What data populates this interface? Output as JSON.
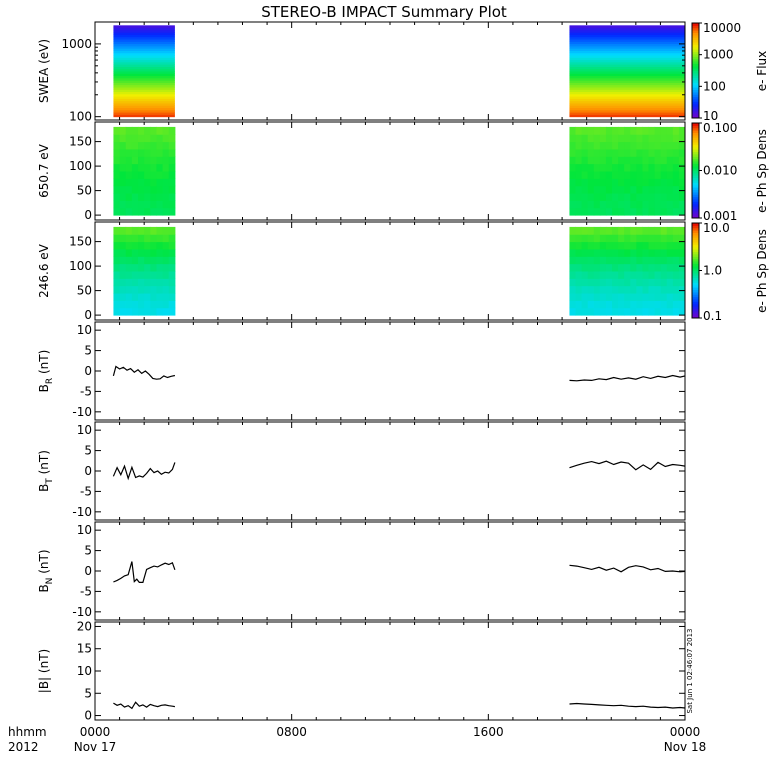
{
  "title": "STEREO-B IMPACT Summary Plot",
  "x_axis": {
    "row1_label": "hhmm",
    "row2_label": "2012",
    "ticks": [
      {
        "t": 0,
        "label": "0000",
        "date": "Nov 17"
      },
      {
        "t": 8,
        "label": "0800",
        "date": ""
      },
      {
        "t": 16,
        "label": "1600",
        "date": ""
      },
      {
        "t": 24,
        "label": "0000",
        "date": "Nov 18"
      }
    ],
    "range_hours": [
      0,
      24
    ]
  },
  "stamp": "Sat Jun 1 02:46:07 2013",
  "chart_data": [
    {
      "type": "heatmap",
      "panel": "swea",
      "ylabel": "SWEA (eV)",
      "yscale": "log",
      "ylim": [
        90,
        2000
      ],
      "yticks": [
        {
          "v": 100,
          "label": "100"
        },
        {
          "v": 1000,
          "label": "1000"
        }
      ],
      "colorbar": {
        "label": "e- Flux",
        "scale": "log",
        "range": [
          10,
          10000
        ],
        "ticks": [
          {
            "v": 10,
            "label": "10"
          },
          {
            "v": 100,
            "label": "100"
          },
          {
            "v": 1000,
            "label": "1000"
          },
          {
            "v": 10000,
            "label": "10000"
          }
        ]
      },
      "segments": [
        {
          "x0": 0.75,
          "x1": 3.25
        },
        {
          "x0": 19.3,
          "x1": 24
        }
      ],
      "energy_range": [
        100,
        1800
      ],
      "flux_low_energy": 8000,
      "flux_high_energy": 15
    },
    {
      "type": "heatmap",
      "panel": "pad650",
      "ylabel": "650.7 eV",
      "ylim": [
        -10,
        190
      ],
      "yticks": [
        {
          "v": 0,
          "label": "0"
        },
        {
          "v": 50,
          "label": "50"
        },
        {
          "v": 100,
          "label": "100"
        },
        {
          "v": 150,
          "label": "150"
        }
      ],
      "colorbar": {
        "label": "e- Ph Sp Dens",
        "scale": "log",
        "range": [
          0.001,
          0.1
        ],
        "ticks": [
          {
            "v": 0.001,
            "label": "0.001"
          },
          {
            "v": 0.01,
            "label": "0.010"
          },
          {
            "v": 0.1,
            "label": "0.100"
          }
        ]
      },
      "segments": [
        {
          "x0": 0.75,
          "x1": 3.25
        },
        {
          "x0": 19.3,
          "x1": 24
        }
      ],
      "pitch_range": [
        0,
        180
      ],
      "value_range": [
        0.011,
        0.018
      ]
    },
    {
      "type": "heatmap",
      "panel": "pad246",
      "ylabel": "246.6 eV",
      "ylim": [
        -10,
        190
      ],
      "yticks": [
        {
          "v": 0,
          "label": "0"
        },
        {
          "v": 50,
          "label": "50"
        },
        {
          "v": 100,
          "label": "100"
        },
        {
          "v": 150,
          "label": "150"
        }
      ],
      "colorbar": {
        "label": "e- Ph Sp Dens",
        "scale": "log",
        "range": [
          0.1,
          10
        ],
        "ticks": [
          {
            "v": 0.1,
            "label": "0.1"
          },
          {
            "v": 1,
            "label": "1.0"
          },
          {
            "v": 10,
            "label": "10.0"
          }
        ]
      },
      "segments": [
        {
          "x0": 0.75,
          "x1": 3.25
        },
        {
          "x0": 19.3,
          "x1": 24
        }
      ],
      "pitch_range": [
        0,
        180
      ],
      "value_range": [
        0.55,
        1.9
      ]
    },
    {
      "type": "line",
      "panel": "br",
      "ylabel": "B",
      "ysub": "R",
      "yunit": " (nT)",
      "ylim": [
        -12,
        12
      ],
      "yticks": [
        {
          "v": -10,
          "label": "-10"
        },
        {
          "v": -5,
          "label": "-5"
        },
        {
          "v": 0,
          "label": "0"
        },
        {
          "v": 5,
          "label": "5"
        },
        {
          "v": 10,
          "label": "10"
        }
      ],
      "segments": [
        {
          "x": [
            0.75,
            0.85,
            1.0,
            1.15,
            1.3,
            1.45,
            1.6,
            1.75,
            1.9,
            2.05,
            2.2,
            2.35,
            2.5,
            2.65,
            2.8,
            2.95,
            3.1,
            3.25
          ],
          "y": [
            -1.2,
            1.1,
            0.5,
            0.9,
            0.2,
            0.6,
            -0.3,
            0.3,
            -0.6,
            0.0,
            -0.8,
            -1.8,
            -2.0,
            -1.9,
            -1.2,
            -1.6,
            -1.3,
            -1.1
          ]
        },
        {
          "x": [
            19.3,
            19.6,
            19.9,
            20.2,
            20.5,
            20.8,
            21.1,
            21.4,
            21.7,
            22.0,
            22.3,
            22.6,
            22.9,
            23.2,
            23.5,
            23.8,
            24.0
          ],
          "y": [
            -2.3,
            -2.4,
            -2.2,
            -2.3,
            -1.9,
            -2.1,
            -1.6,
            -2.0,
            -1.7,
            -2.0,
            -1.4,
            -1.8,
            -1.3,
            -1.6,
            -1.1,
            -1.5,
            -1.2
          ]
        }
      ]
    },
    {
      "type": "line",
      "panel": "bt",
      "ylabel": "B",
      "ysub": "T",
      "yunit": " (nT)",
      "ylim": [
        -12,
        12
      ],
      "yticks": [
        {
          "v": -10,
          "label": "-10"
        },
        {
          "v": -5,
          "label": "-5"
        },
        {
          "v": 0,
          "label": "0"
        },
        {
          "v": 5,
          "label": "5"
        },
        {
          "v": 10,
          "label": "10"
        }
      ],
      "segments": [
        {
          "x": [
            0.75,
            0.9,
            1.05,
            1.2,
            1.35,
            1.5,
            1.65,
            1.8,
            1.95,
            2.1,
            2.25,
            2.4,
            2.55,
            2.7,
            2.85,
            3.0,
            3.15,
            3.25
          ],
          "y": [
            -1.3,
            0.8,
            -0.9,
            1.2,
            -1.8,
            0.9,
            -1.6,
            -1.2,
            -1.5,
            -0.6,
            0.6,
            -0.4,
            0.0,
            -0.8,
            -0.3,
            -0.5,
            0.4,
            2.1
          ]
        },
        {
          "x": [
            19.3,
            19.6,
            19.9,
            20.2,
            20.5,
            20.8,
            21.1,
            21.4,
            21.7,
            22.0,
            22.3,
            22.6,
            22.9,
            23.2,
            23.5,
            23.8,
            24.0
          ],
          "y": [
            0.8,
            1.4,
            1.9,
            2.3,
            1.8,
            2.4,
            1.6,
            2.2,
            1.9,
            0.3,
            1.5,
            0.4,
            2.1,
            1.1,
            1.6,
            1.4,
            1.2
          ]
        }
      ]
    },
    {
      "type": "line",
      "panel": "bn",
      "ylabel": "B",
      "ysub": "N",
      "yunit": " (nT)",
      "ylim": [
        -12,
        12
      ],
      "yticks": [
        {
          "v": -10,
          "label": "-10"
        },
        {
          "v": -5,
          "label": "-5"
        },
        {
          "v": 0,
          "label": "0"
        },
        {
          "v": 5,
          "label": "5"
        },
        {
          "v": 10,
          "label": "10"
        }
      ],
      "segments": [
        {
          "x": [
            0.75,
            0.9,
            1.05,
            1.2,
            1.35,
            1.5,
            1.6,
            1.7,
            1.8,
            1.95,
            2.1,
            2.25,
            2.4,
            2.55,
            2.7,
            2.85,
            3.0,
            3.15,
            3.25
          ],
          "y": [
            -2.7,
            -2.3,
            -1.8,
            -1.2,
            -0.9,
            2.3,
            -2.6,
            -2.0,
            -2.8,
            -2.8,
            0.4,
            0.8,
            1.2,
            1.0,
            1.5,
            1.9,
            1.6,
            2.0,
            0.3
          ]
        },
        {
          "x": [
            19.3,
            19.6,
            19.9,
            20.2,
            20.5,
            20.8,
            21.1,
            21.4,
            21.7,
            22.0,
            22.3,
            22.6,
            22.9,
            23.2,
            23.5,
            23.8,
            24.0
          ],
          "y": [
            1.4,
            1.2,
            0.8,
            0.4,
            0.9,
            0.2,
            0.7,
            -0.2,
            0.9,
            1.3,
            1.0,
            0.3,
            0.6,
            -0.1,
            0.0,
            -0.2,
            -0.1
          ]
        }
      ]
    },
    {
      "type": "line",
      "panel": "bmag",
      "ylabel": "|B| (nT)",
      "ylim": [
        -1,
        21
      ],
      "yticks": [
        {
          "v": 0,
          "label": "0"
        },
        {
          "v": 5,
          "label": "5"
        },
        {
          "v": 10,
          "label": "10"
        },
        {
          "v": 15,
          "label": "15"
        },
        {
          "v": 20,
          "label": "20"
        }
      ],
      "segments": [
        {
          "x": [
            0.75,
            0.9,
            1.05,
            1.2,
            1.35,
            1.5,
            1.65,
            1.8,
            1.95,
            2.1,
            2.25,
            2.4,
            2.55,
            2.7,
            2.85,
            3.0,
            3.15,
            3.25
          ],
          "y": [
            2.8,
            2.3,
            2.6,
            1.9,
            2.2,
            1.6,
            3.0,
            2.1,
            2.4,
            1.9,
            2.5,
            2.2,
            2.0,
            2.3,
            2.4,
            2.2,
            2.1,
            2.0
          ]
        },
        {
          "x": [
            19.3,
            19.6,
            19.9,
            20.2,
            20.5,
            20.8,
            21.1,
            21.4,
            21.7,
            22.0,
            22.3,
            22.6,
            22.9,
            23.2,
            23.5,
            23.8,
            24.0
          ],
          "y": [
            2.6,
            2.7,
            2.6,
            2.5,
            2.4,
            2.3,
            2.2,
            2.3,
            2.1,
            2.0,
            2.1,
            1.9,
            1.8,
            1.9,
            1.7,
            1.8,
            1.7
          ]
        }
      ]
    }
  ]
}
